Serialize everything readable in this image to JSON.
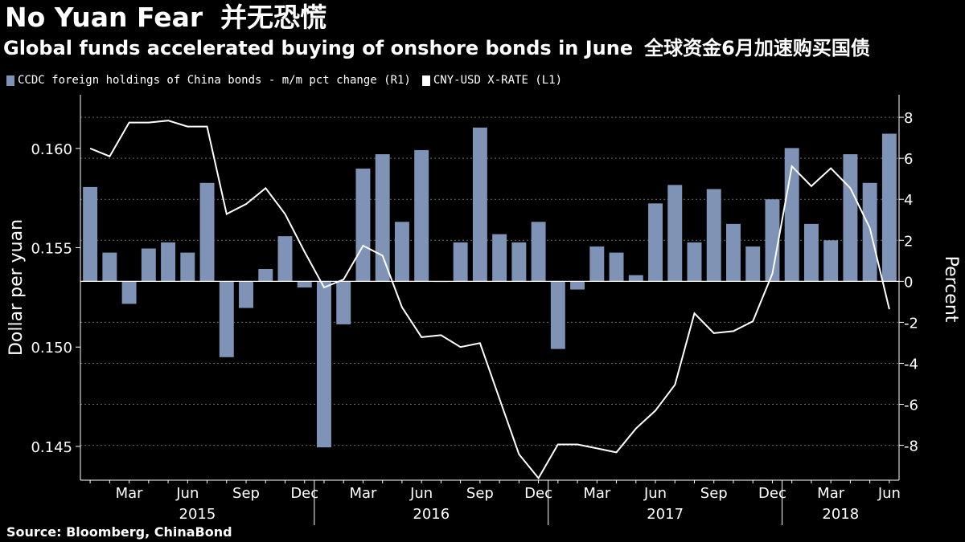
{
  "title": {
    "en": "No Yuan Fear",
    "zh": "并无恐慌"
  },
  "subtitle": {
    "en": "Global funds accelerated buying of onshore bonds in June",
    "zh": "全球资金6月加速购买国债"
  },
  "source": "Source: Bloomberg, ChinaBond",
  "colors": {
    "bar": "#7f93b6",
    "line": "#ffffff",
    "grid": "#6a6a6a",
    "background": "#000000"
  },
  "chart_data": {
    "type": "bar",
    "legend_position": "top-left",
    "grid": true,
    "xlabel": "",
    "y_left_label": "Dollar per yuan",
    "y_right_label": "Percent",
    "y_left_range": [
      0.1433,
      0.1627
    ],
    "y_right_range": [
      -9.7,
      9.1
    ],
    "y_left_ticks": [
      "0.145",
      "0.150",
      "0.155",
      "0.160"
    ],
    "y_right_ticks": [
      "-8",
      "-6",
      "-4",
      "-2",
      "0",
      "2",
      "4",
      "6",
      "8"
    ],
    "x_month_labels": [
      "Mar",
      "Jun",
      "Sep",
      "Dec",
      "Mar",
      "Jun",
      "Sep",
      "Dec",
      "Mar",
      "Jun",
      "Sep",
      "Dec",
      "Mar",
      "Jun"
    ],
    "x_year_labels": [
      "2015",
      "2016",
      "2017",
      "2018"
    ],
    "categories": [
      "2015-01",
      "2015-02",
      "2015-03",
      "2015-04",
      "2015-05",
      "2015-06",
      "2015-07",
      "2015-08",
      "2015-09",
      "2015-10",
      "2015-11",
      "2015-12",
      "2016-01",
      "2016-02",
      "2016-03",
      "2016-04",
      "2016-05",
      "2016-06",
      "2016-07",
      "2016-08",
      "2016-09",
      "2016-10",
      "2016-11",
      "2016-12",
      "2017-01",
      "2017-02",
      "2017-03",
      "2017-04",
      "2017-05",
      "2017-06",
      "2017-07",
      "2017-08",
      "2017-09",
      "2017-10",
      "2017-11",
      "2017-12",
      "2018-01",
      "2018-02",
      "2018-03",
      "2018-04",
      "2018-05",
      "2018-06"
    ],
    "series": [
      {
        "name": "CCDC foreign holdings of China bonds - m/m pct change (R1)",
        "type": "bar",
        "axis": "right",
        "values": [
          4.6,
          1.4,
          -1.1,
          1.6,
          1.9,
          1.4,
          4.8,
          -3.7,
          -1.3,
          0.6,
          2.2,
          -0.3,
          -8.1,
          -2.1,
          5.5,
          6.2,
          2.9,
          6.4,
          0.0,
          1.9,
          7.5,
          2.3,
          1.9,
          2.9,
          -3.3,
          -0.4,
          1.7,
          1.4,
          0.3,
          3.8,
          4.7,
          1.9,
          4.5,
          2.8,
          1.7,
          4.0,
          6.5,
          2.8,
          2.0,
          6.2,
          4.8,
          7.2
        ]
      },
      {
        "name": "CNY-USD X-RATE (L1)",
        "type": "line",
        "axis": "left",
        "values": [
          0.16,
          0.1596,
          0.1613,
          0.1613,
          0.1614,
          0.1611,
          0.1611,
          0.1567,
          0.1572,
          0.158,
          0.1567,
          0.1548,
          0.153,
          0.1534,
          0.1551,
          0.1546,
          0.152,
          0.1505,
          0.1506,
          0.15,
          0.1502,
          0.1474,
          0.1446,
          0.1434,
          0.1451,
          0.1451,
          0.1449,
          0.1447,
          0.1459,
          0.1468,
          0.1481,
          0.1517,
          0.1507,
          0.1508,
          0.1513,
          0.1537,
          0.1591,
          0.1581,
          0.159,
          0.158,
          0.156,
          0.1519
        ]
      }
    ]
  }
}
